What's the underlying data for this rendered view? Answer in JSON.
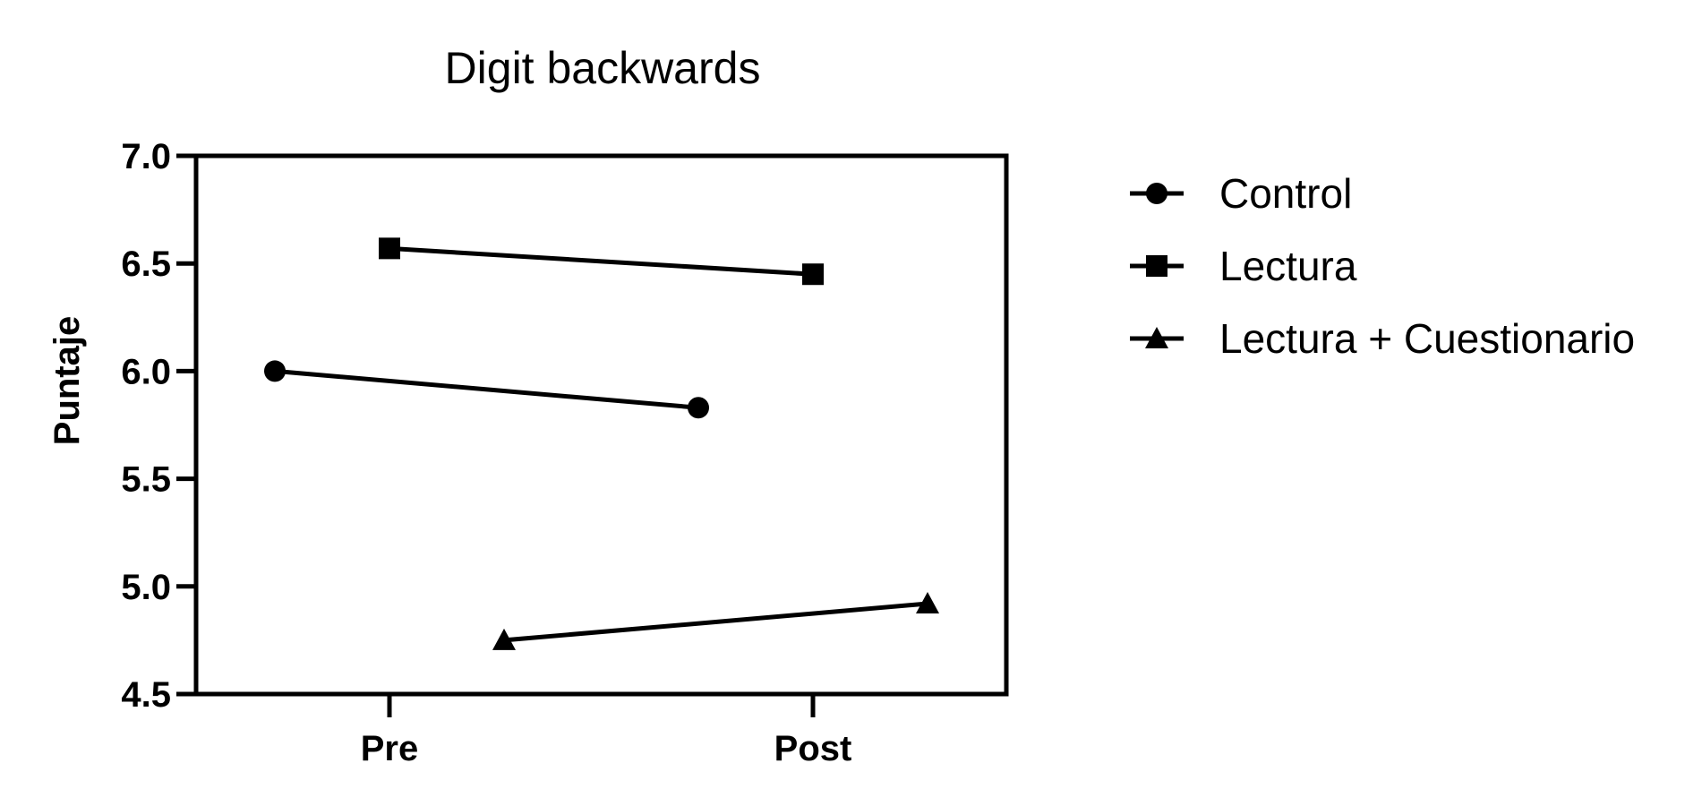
{
  "chart_data": {
    "type": "line",
    "title": "Digit backwards",
    "xlabel": "",
    "ylabel": "Puntaje",
    "categories": [
      "Pre",
      "Post"
    ],
    "ylim": [
      4.5,
      7.0
    ],
    "yticks": [
      "4.5",
      "5.0",
      "5.5",
      "6.0",
      "6.5",
      "7.0"
    ],
    "grid": false,
    "legend_position": "right",
    "series": [
      {
        "name": "Control",
        "marker": "circle",
        "values": [
          6.0,
          5.83
        ]
      },
      {
        "name": "Lectura",
        "marker": "square",
        "values": [
          6.57,
          6.45
        ]
      },
      {
        "name": "Lectura + Cuestionario",
        "marker": "triangle",
        "values": [
          4.75,
          4.92
        ]
      }
    ],
    "colors": {
      "line": "#000000"
    }
  }
}
